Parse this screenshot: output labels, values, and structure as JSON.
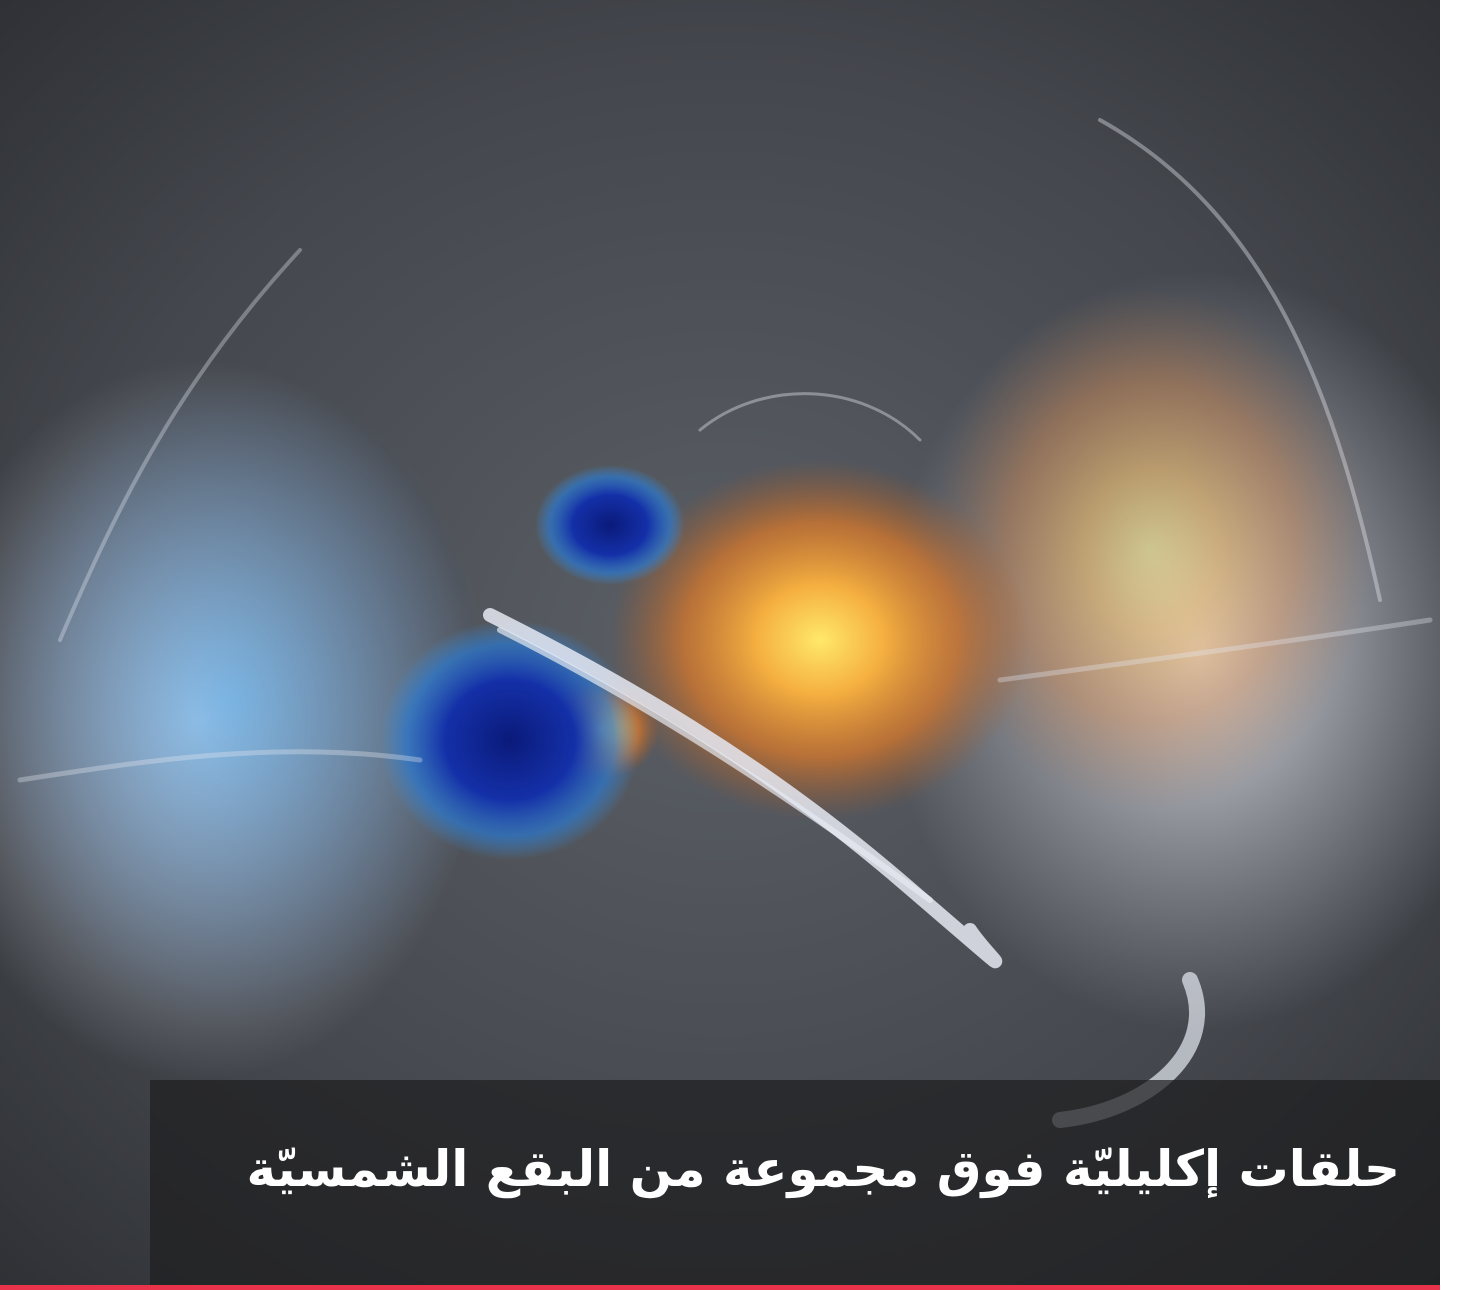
{
  "caption": "حلقات إكليليّة فوق مجموعة من البقع الشمسيّة"
}
